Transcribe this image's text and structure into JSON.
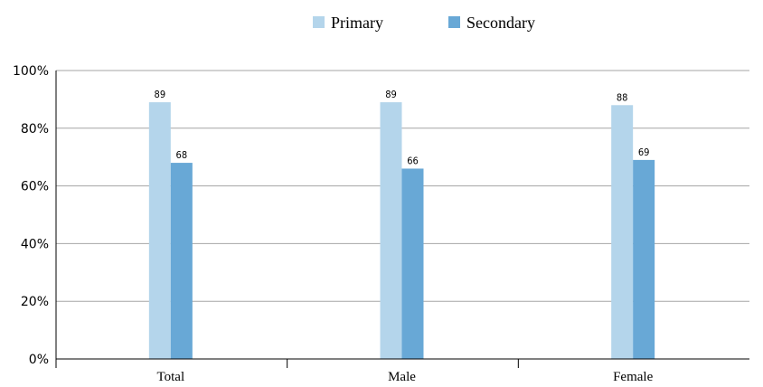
{
  "chart_data": {
    "type": "bar",
    "categories": [
      "Total",
      "Male",
      "Female"
    ],
    "series": [
      {
        "name": "Primary",
        "values": [
          89,
          89,
          88
        ],
        "color": "#b4d5eb"
      },
      {
        "name": "Secondary",
        "values": [
          68,
          66,
          69
        ],
        "color": "#68a8d6"
      }
    ],
    "y_ticks": [
      "0%",
      "20%",
      "40%",
      "60%",
      "80%",
      "100%"
    ],
    "ylim": [
      0,
      100
    ],
    "grid": true,
    "legend_position": "top",
    "title": "",
    "xlabel": "",
    "ylabel": ""
  }
}
